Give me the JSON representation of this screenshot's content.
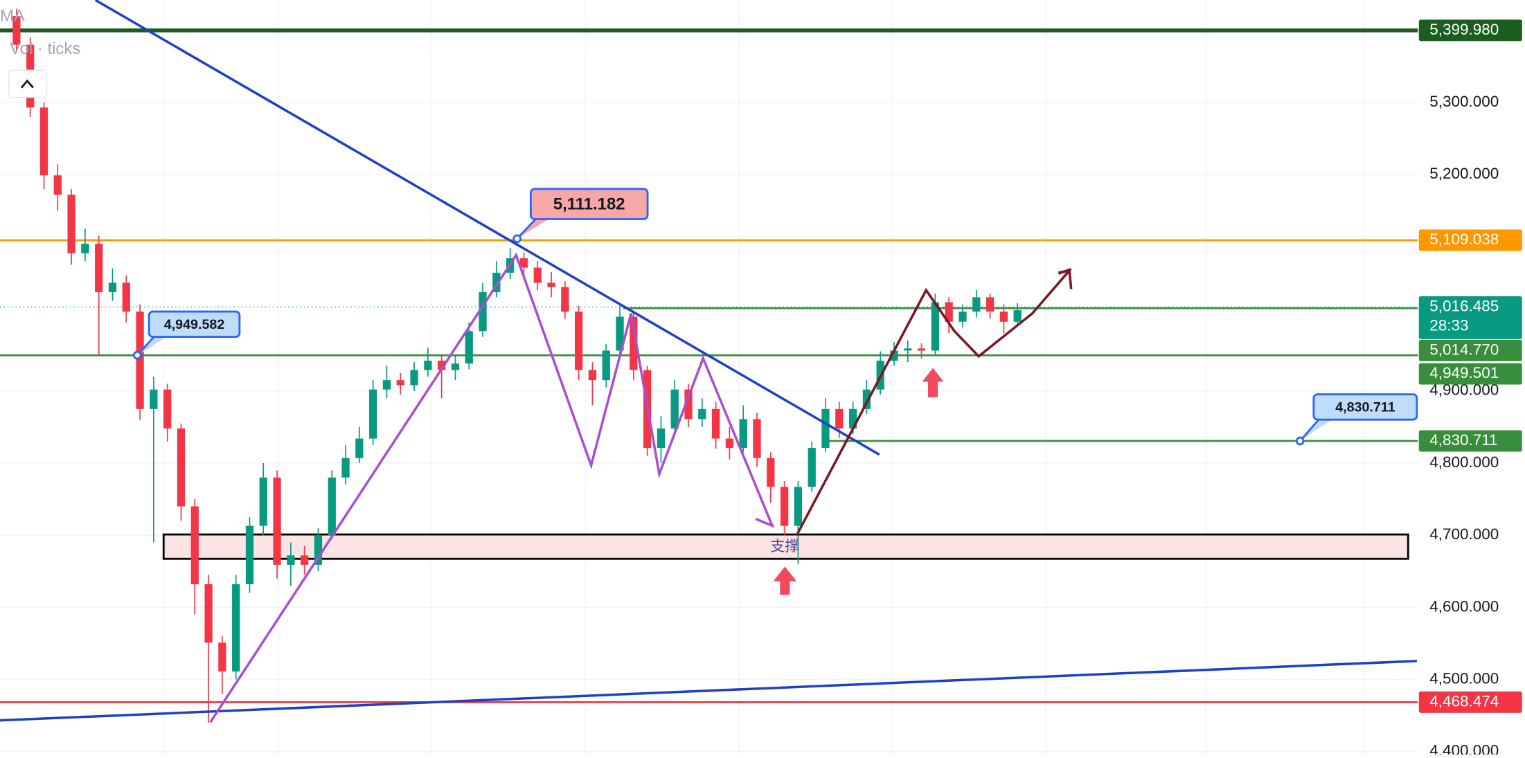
{
  "toolbar": {
    "ma": "MA",
    "vol": "Vol · ticks"
  },
  "chart_data": {
    "type": "candlestick",
    "ylim": [
      4396,
      5442
    ],
    "yticks": [
      {
        "value": 4400,
        "label": "4,400.000"
      },
      {
        "value": 4500,
        "label": "4,500.000"
      },
      {
        "value": 4600,
        "label": "4,600.000"
      },
      {
        "value": 4700,
        "label": "4,700.000"
      },
      {
        "value": 4800,
        "label": "4,800.000"
      },
      {
        "value": 4900,
        "label": "4,900.000"
      },
      {
        "value": 5200,
        "label": "5,200.000"
      },
      {
        "value": 5300,
        "label": "5,300.000"
      }
    ],
    "up_color": "#089981",
    "down_color": "#f23645",
    "ohlc": [
      [
        5420,
        5430,
        5370,
        5380
      ],
      [
        5380,
        5390,
        5280,
        5293
      ],
      [
        5293,
        5300,
        5180,
        5199
      ],
      [
        5199,
        5215,
        5150,
        5172
      ],
      [
        5172,
        5180,
        5075,
        5091
      ],
      [
        5091,
        5125,
        5080,
        5104
      ],
      [
        5104,
        5115,
        4950,
        5037
      ],
      [
        5037,
        5070,
        5025,
        5050
      ],
      [
        5050,
        5060,
        4995,
        5010
      ],
      [
        5010,
        5020,
        4860,
        4875
      ],
      [
        4875,
        4920,
        4690,
        4902
      ],
      [
        4902,
        4910,
        4830,
        4848
      ],
      [
        4848,
        4855,
        4720,
        4740
      ],
      [
        4740,
        4750,
        4590,
        4632
      ],
      [
        4632,
        4645,
        4440,
        4551
      ],
      [
        4551,
        4560,
        4480,
        4511
      ],
      [
        4511,
        4645,
        4500,
        4632
      ],
      [
        4632,
        4725,
        4620,
        4713
      ],
      [
        4713,
        4800,
        4700,
        4780
      ],
      [
        4780,
        4790,
        4640,
        4659
      ],
      [
        4659,
        4690,
        4630,
        4672
      ],
      [
        4672,
        4685,
        4645,
        4659
      ],
      [
        4659,
        4710,
        4650,
        4700
      ],
      [
        4700,
        4790,
        4695,
        4780
      ],
      [
        4780,
        4825,
        4770,
        4807
      ],
      [
        4807,
        4850,
        4800,
        4834
      ],
      [
        4834,
        4915,
        4825,
        4902
      ],
      [
        4902,
        4935,
        4890,
        4915
      ],
      [
        4915,
        4925,
        4895,
        4908
      ],
      [
        4908,
        4940,
        4900,
        4929
      ],
      [
        4929,
        4960,
        4920,
        4942
      ],
      [
        4942,
        4950,
        4890,
        4929
      ],
      [
        4929,
        4950,
        4915,
        4938
      ],
      [
        4938,
        4995,
        4930,
        4983
      ],
      [
        4983,
        5050,
        4975,
        5037
      ],
      [
        5037,
        5080,
        5030,
        5064
      ],
      [
        5064,
        5098,
        5055,
        5084
      ],
      [
        5084,
        5092,
        5060,
        5071
      ],
      [
        5071,
        5080,
        5040,
        5050
      ],
      [
        5050,
        5065,
        5030,
        5044
      ],
      [
        5044,
        5052,
        5000,
        5010
      ],
      [
        5010,
        5018,
        4915,
        4929
      ],
      [
        4929,
        4940,
        4880,
        4915
      ],
      [
        4915,
        4965,
        4905,
        4956
      ],
      [
        4956,
        5018,
        4950,
        5003
      ],
      [
        5003,
        5010,
        4915,
        4929
      ],
      [
        4929,
        4935,
        4810,
        4821
      ],
      [
        4821,
        4865,
        4800,
        4848
      ],
      [
        4848,
        4915,
        4840,
        4902
      ],
      [
        4902,
        4910,
        4850,
        4861
      ],
      [
        4861,
        4890,
        4850,
        4875
      ],
      [
        4875,
        4885,
        4820,
        4834
      ],
      [
        4834,
        4850,
        4805,
        4821
      ],
      [
        4821,
        4880,
        4815,
        4861
      ],
      [
        4861,
        4870,
        4795,
        4807
      ],
      [
        4807,
        4815,
        4745,
        4767
      ],
      [
        4767,
        4775,
        4700,
        4713
      ],
      [
        4713,
        4775,
        4660,
        4767
      ],
      [
        4767,
        4830,
        4760,
        4821
      ],
      [
        4821,
        4890,
        4815,
        4875
      ],
      [
        4875,
        4885,
        4835,
        4848
      ],
      [
        4848,
        4885,
        4840,
        4875
      ],
      [
        4875,
        4915,
        4868,
        4902
      ],
      [
        4902,
        4955,
        4895,
        4942
      ],
      [
        4942,
        4968,
        4935,
        4956
      ],
      [
        4956,
        4970,
        4940,
        4959
      ],
      [
        4959,
        4966,
        4945,
        4956
      ],
      [
        4956,
        5035,
        4950,
        5023
      ],
      [
        5023,
        5030,
        4980,
        4996
      ],
      [
        4996,
        5020,
        4988,
        5010
      ],
      [
        5010,
        5040,
        5002,
        5030
      ],
      [
        5030,
        5035,
        5000,
        5010
      ],
      [
        5010,
        5020,
        4980,
        4996
      ],
      [
        4996,
        5022,
        4990,
        5012
      ]
    ],
    "price_lines": [
      {
        "value": 5399.98,
        "label": "5,399.980",
        "color": "#1b5e20"
      },
      {
        "value": 5109.038,
        "label": "5,109.038",
        "color": "#ff9800"
      },
      {
        "value": 5016.485,
        "label": "5,016.485",
        "color": "#089981",
        "countdown": "28:33",
        "style": "dotted"
      },
      {
        "value": 5014.77,
        "label": "5,014.770",
        "color": "#388e3c"
      },
      {
        "value": 4949.501,
        "label": "4,949.501",
        "color": "#388e3c"
      },
      {
        "value": 4830.711,
        "label": "4,830.711",
        "color": "#388e3c"
      },
      {
        "value": 4468.474,
        "label": "4,468.474",
        "color": "#f23645"
      }
    ],
    "callouts": [
      {
        "value": 5111.182,
        "label": "5,111.182"
      },
      {
        "value": 4949.582,
        "label": "4,949.582"
      },
      {
        "value": 4830.711,
        "label": "4,830.711"
      }
    ],
    "zone_label": "支撑"
  }
}
